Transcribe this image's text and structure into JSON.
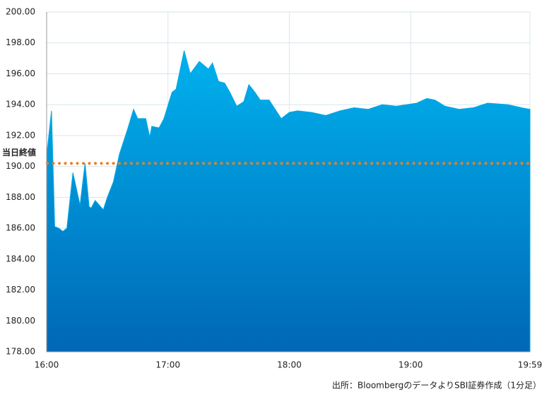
{
  "chart_data": {
    "type": "area",
    "x": [
      0,
      2.4,
      4,
      6,
      8,
      10,
      13,
      16.5,
      19,
      21,
      22,
      24,
      28,
      30,
      33,
      36,
      40,
      43,
      45,
      49,
      51,
      52,
      55.6,
      58,
      62,
      64,
      68,
      71,
      75.5,
      80,
      82,
      85,
      88,
      90.6,
      94,
      97.5,
      100,
      103,
      105.6,
      110,
      113,
      116,
      120,
      124,
      131,
      138,
      145,
      152,
      159,
      166,
      173,
      183,
      188,
      192,
      197,
      204,
      211,
      218,
      228,
      235,
      239
    ],
    "series": [
      {
        "color": "#00a8e6",
        "values": [
          190.7,
          193.6,
          186.1,
          186.0,
          185.8,
          186.0,
          189.6,
          187.5,
          190.2,
          187.4,
          187.3,
          187.8,
          187.2,
          188.0,
          189.0,
          190.8,
          192.4,
          193.7,
          193.1,
          193.1,
          191.9,
          192.6,
          192.5,
          193.1,
          194.8,
          195.0,
          197.5,
          196.0,
          196.8,
          196.3,
          196.7,
          195.5,
          195.4,
          194.8,
          193.9,
          194.2,
          195.3,
          194.8,
          194.3,
          194.3,
          193.7,
          193.1,
          193.5,
          193.6,
          193.5,
          193.3,
          193.6,
          193.8,
          193.7,
          194.0,
          193.9,
          194.1,
          194.4,
          194.3,
          193.9,
          193.7,
          193.8,
          194.1,
          194.0,
          193.8,
          193.7
        ]
      }
    ],
    "xlim": [
      0,
      239
    ],
    "xticks": [
      {
        "value": 0,
        "label": "16:00"
      },
      {
        "value": 60,
        "label": "17:00"
      },
      {
        "value": 120,
        "label": "18:00"
      },
      {
        "value": 180,
        "label": "19:00"
      },
      {
        "value": 239,
        "label": "19:59"
      }
    ],
    "ylim": [
      178,
      200
    ],
    "yticks": [
      {
        "value": 178,
        "label": "178.00"
      },
      {
        "value": 180,
        "label": "180.00"
      },
      {
        "value": 182,
        "label": "182.00"
      },
      {
        "value": 184,
        "label": "184.00"
      },
      {
        "value": 186,
        "label": "186.00"
      },
      {
        "value": 188,
        "label": "188.00"
      },
      {
        "value": 190,
        "label": "190.00"
      },
      {
        "value": 192,
        "label": "192.00"
      },
      {
        "value": 194,
        "label": "194.00"
      },
      {
        "value": 196,
        "label": "196.00"
      },
      {
        "value": 198,
        "label": "198.00"
      },
      {
        "value": 200,
        "label": "200.00"
      }
    ],
    "grid": true,
    "reference_line": {
      "value": 190.2,
      "label": "当日終値",
      "color": "#f07e1e"
    },
    "source": "出所：BloombergのデータよりSBI証券作成（1分足）"
  }
}
